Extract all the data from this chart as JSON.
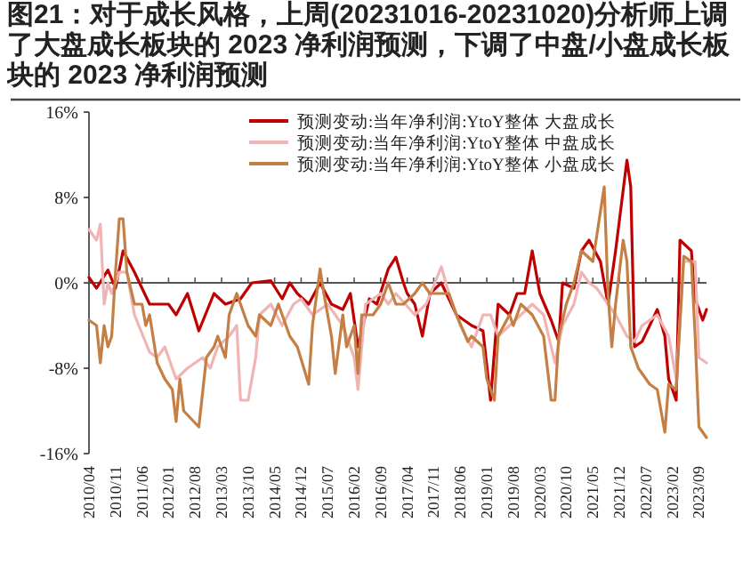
{
  "chart_data": {
    "type": "line",
    "title": "图21：对于成长风格，上周(20231016-20231020)分析师上调了大盘成长板块的 2023 净利润预测，下调了中盘/小盘成长板块的 2023 净利润预测",
    "xlim": [
      "2010-04",
      "2023-11"
    ],
    "xticks": [
      {
        "value": "2010-04",
        "label": "2010/04"
      },
      {
        "value": "2010-11",
        "label": "2010/11"
      },
      {
        "value": "2011-06",
        "label": "2011/06"
      },
      {
        "value": "2012-01",
        "label": "2012/01"
      },
      {
        "value": "2012-08",
        "label": "2012/08"
      },
      {
        "value": "2013-03",
        "label": "2013/03"
      },
      {
        "value": "2013-10",
        "label": "2013/10"
      },
      {
        "value": "2014-05",
        "label": "2014/05"
      },
      {
        "value": "2014-12",
        "label": "2014/12"
      },
      {
        "value": "2015-07",
        "label": "2015/07"
      },
      {
        "value": "2016-02",
        "label": "2016/02"
      },
      {
        "value": "2016-09",
        "label": "2016/09"
      },
      {
        "value": "2017-04",
        "label": "2017/04"
      },
      {
        "value": "2017-11",
        "label": "2017/11"
      },
      {
        "value": "2018-06",
        "label": "2018/06"
      },
      {
        "value": "2019-01",
        "label": "2019/01"
      },
      {
        "value": "2019-08",
        "label": "2019/08"
      },
      {
        "value": "2020-03",
        "label": "2020/03"
      },
      {
        "value": "2020-10",
        "label": "2020/10"
      },
      {
        "value": "2021-05",
        "label": "2021/05"
      },
      {
        "value": "2021-12",
        "label": "2021/12"
      },
      {
        "value": "2022-07",
        "label": "2022/07"
      },
      {
        "value": "2023-02",
        "label": "2023/02"
      },
      {
        "value": "2023-09",
        "label": "2023/09"
      }
    ],
    "ylim": [
      -16,
      16
    ],
    "yticks": [
      {
        "value": -16,
        "label": "-16%"
      },
      {
        "value": -8,
        "label": "-8%"
      },
      {
        "value": 0,
        "label": "0%"
      },
      {
        "value": 8,
        "label": "8%"
      },
      {
        "value": 16,
        "label": "16%"
      }
    ],
    "legend": "top",
    "marker": "none",
    "line_style": "solid",
    "series": [
      {
        "name": "预测变动:当年净利润:YtoY整体 大盘成长",
        "color": "#c00000",
        "x": [
          "2010-04",
          "2010-06",
          "2010-09",
          "2010-11",
          "2011-01",
          "2011-04",
          "2011-08",
          "2012-01",
          "2012-03",
          "2012-06",
          "2012-09",
          "2013-01",
          "2013-04",
          "2013-08",
          "2013-11",
          "2014-04",
          "2014-07",
          "2014-09",
          "2014-11",
          "2015-02",
          "2015-05",
          "2015-08",
          "2015-11",
          "2016-01",
          "2016-03",
          "2016-06",
          "2016-08",
          "2016-11",
          "2017-01",
          "2017-03",
          "2017-04",
          "2017-06",
          "2017-08",
          "2017-10",
          "2018-01",
          "2018-03",
          "2018-05",
          "2018-09",
          "2018-12",
          "2019-02",
          "2019-04",
          "2019-07",
          "2019-09",
          "2019-11",
          "2020-01",
          "2020-03",
          "2020-06",
          "2020-08",
          "2020-09",
          "2020-12",
          "2021-02",
          "2021-04",
          "2021-07",
          "2021-09",
          "2021-11",
          "2022-02",
          "2022-03",
          "2022-04",
          "2022-06",
          "2022-10",
          "2022-12",
          "2023-01",
          "2023-03",
          "2023-04",
          "2023-07",
          "2023-08",
          "2023-10",
          "2023-11"
        ],
        "values": [
          0.5,
          -0.5,
          1.2,
          -0.5,
          3,
          1,
          -2,
          -2,
          -3,
          -1,
          -4.5,
          -1,
          -2,
          -1.5,
          0,
          0.2,
          -1.5,
          0,
          -1,
          -2,
          0,
          -2,
          -2.5,
          -1,
          -6,
          -1.5,
          -2,
          1.3,
          2.4,
          0,
          -1,
          -2,
          -5,
          -1,
          0,
          -1.5,
          -3,
          -4,
          -4.5,
          -11,
          -2,
          -3,
          -1,
          -1,
          3,
          -1,
          -3.5,
          -5.5,
          0,
          -0.5,
          3,
          4,
          2,
          -2,
          3,
          11.5,
          9,
          -6,
          -5.5,
          -2.5,
          -5,
          -9,
          -11,
          4,
          3,
          -1.5,
          -3.5,
          -2.5
        ]
      },
      {
        "name": "预测变动:当年净利润:YtoY整体 中盘成长",
        "color": "#f0b4b4",
        "x": [
          "2010-04",
          "2010-06",
          "2010-07",
          "2010-08",
          "2010-09",
          "2010-10",
          "2010-12",
          "2011-02",
          "2011-04",
          "2011-08",
          "2011-10",
          "2011-12",
          "2012-03",
          "2012-06",
          "2012-10",
          "2012-12",
          "2013-02",
          "2013-05",
          "2013-07",
          "2013-08",
          "2013-10",
          "2013-12",
          "2014-01",
          "2014-04",
          "2014-07",
          "2014-10",
          "2014-12",
          "2015-03",
          "2015-07",
          "2015-11",
          "2016-02",
          "2016-03",
          "2016-05",
          "2016-09",
          "2016-11",
          "2017-01",
          "2017-06",
          "2017-09",
          "2018-01",
          "2018-03",
          "2018-06",
          "2018-09",
          "2018-12",
          "2019-02",
          "2019-04",
          "2019-07",
          "2019-10",
          "2020-01",
          "2020-04",
          "2020-07",
          "2020-09",
          "2020-12",
          "2021-02",
          "2021-04",
          "2021-06",
          "2021-09",
          "2021-11",
          "2022-02",
          "2022-04",
          "2022-06",
          "2022-10",
          "2023-01",
          "2023-03",
          "2023-05",
          "2023-08",
          "2023-09",
          "2023-11"
        ],
        "values": [
          5,
          4,
          5.5,
          -2,
          0,
          -1,
          1,
          1,
          -3,
          -6.5,
          -7,
          -6,
          -9,
          -8,
          -7,
          -8,
          -6,
          -5,
          -4,
          -11,
          -11,
          -7,
          -3,
          -2,
          -4,
          -2,
          -1.5,
          -3,
          -2,
          -4,
          -7,
          -10,
          -2,
          -1,
          -2,
          -1,
          -3,
          -2,
          1.5,
          -1,
          -4,
          -6,
          -3,
          -3,
          -5,
          -4,
          -3,
          -2,
          -3,
          -7.5,
          -4,
          -2,
          1,
          0,
          -0.5,
          -2,
          -3,
          -5,
          -5.5,
          -4,
          -3,
          -5,
          -9,
          2,
          2,
          -7,
          -7.5
        ]
      },
      {
        "name": "预测变动:当年净利润:YtoY整体 小盘成长",
        "color": "#c47f45",
        "x": [
          "2010-04",
          "2010-06",
          "2010-07",
          "2010-08",
          "2010-09",
          "2010-10",
          "2010-11",
          "2010-12",
          "2011-01",
          "2011-02",
          "2011-04",
          "2011-06",
          "2011-07",
          "2011-08",
          "2011-10",
          "2011-12",
          "2012-02",
          "2012-03",
          "2012-04",
          "2012-05",
          "2012-09",
          "2012-11",
          "2013-01",
          "2013-02",
          "2013-04",
          "2013-05",
          "2013-07",
          "2013-08",
          "2013-10",
          "2013-12",
          "2014-01",
          "2014-04",
          "2014-06",
          "2014-07",
          "2014-09",
          "2014-11",
          "2015-02",
          "2015-03",
          "2015-05",
          "2015-06",
          "2015-08",
          "2015-09",
          "2015-11",
          "2015-12",
          "2016-02",
          "2016-03",
          "2016-04",
          "2016-07",
          "2016-09",
          "2016-11",
          "2017-01",
          "2017-03",
          "2017-06",
          "2017-08",
          "2017-10",
          "2018-01",
          "2018-03",
          "2018-05",
          "2018-08",
          "2018-09",
          "2018-12",
          "2019-01",
          "2019-03",
          "2019-04",
          "2019-07",
          "2019-08",
          "2019-10",
          "2020-01",
          "2020-04",
          "2020-06",
          "2020-07",
          "2020-08",
          "2020-10",
          "2020-12",
          "2021-02",
          "2021-05",
          "2021-08",
          "2021-09",
          "2021-10",
          "2021-11",
          "2022-01",
          "2022-02",
          "2022-03",
          "2022-05",
          "2022-08",
          "2022-10",
          "2022-12",
          "2023-01",
          "2023-03",
          "2023-05",
          "2023-07",
          "2023-08",
          "2023-09",
          "2023-11"
        ],
        "values": [
          -3.5,
          -4,
          -7.5,
          -4,
          -6,
          -5,
          1,
          6,
          6,
          1,
          -2,
          -2,
          -4,
          -3,
          -7.5,
          -9,
          -10,
          -13,
          -9,
          -12,
          -13.5,
          -7,
          -6,
          -5,
          -7,
          -3,
          -1,
          -2,
          -4,
          -5,
          -3,
          -4,
          -2,
          -3,
          -5,
          -6,
          -9.5,
          -4,
          1.3,
          -1,
          -5,
          -8.5,
          -3,
          -6,
          -4,
          -8.5,
          -3,
          -3,
          -2,
          0,
          -2,
          -2,
          -1,
          0,
          -1,
          -1,
          -1,
          -3,
          -5.5,
          -5,
          -6,
          -9,
          -11,
          -5,
          -3,
          -4,
          -2,
          -3,
          -5,
          -11,
          -11,
          -5,
          -2,
          0,
          3,
          2,
          9,
          -1,
          -6,
          -2,
          4,
          2,
          -6,
          -8,
          -9.5,
          -10,
          -14,
          -9.5,
          -10,
          2.5,
          2,
          -5,
          -13.5,
          -14.5
        ]
      }
    ]
  }
}
